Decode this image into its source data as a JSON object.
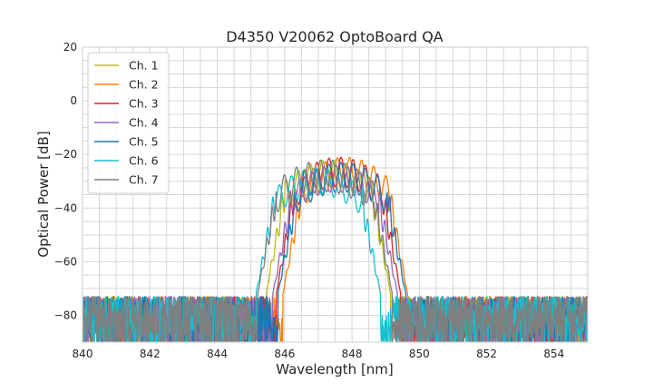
{
  "chart_data": {
    "type": "line",
    "title": "D4350 V20062 OptoBoard QA",
    "xlabel": "Wavelength [nm]",
    "ylabel": "Optical Power [dB]",
    "xlim": [
      840,
      855
    ],
    "ylim": [
      -90,
      20
    ],
    "xticks": [
      840,
      842,
      844,
      846,
      848,
      850,
      852,
      854
    ],
    "yticks": [
      -80,
      -60,
      -40,
      -20,
      0,
      20
    ],
    "grid": true,
    "legend_position": "top-left",
    "noise_floor_db": -80,
    "series": [
      {
        "name": "Ch. 1",
        "color": "#bcbd22",
        "center_nm": 847.3,
        "bandwidth_nm": 2.6,
        "peak_db": -22,
        "ripple_db": 10
      },
      {
        "name": "Ch. 2",
        "color": "#ff7f0e",
        "center_nm": 847.8,
        "bandwidth_nm": 2.6,
        "peak_db": -21,
        "ripple_db": 11
      },
      {
        "name": "Ch. 3",
        "color": "#d62728",
        "center_nm": 847.6,
        "bandwidth_nm": 2.6,
        "peak_db": -21,
        "ripple_db": 11
      },
      {
        "name": "Ch. 4",
        "color": "#9467bd",
        "center_nm": 847.5,
        "bandwidth_nm": 2.6,
        "peak_db": -24,
        "ripple_db": 10
      },
      {
        "name": "Ch. 5",
        "color": "#1f77b4",
        "center_nm": 847.7,
        "bandwidth_nm": 2.7,
        "peak_db": -23,
        "ripple_db": 11
      },
      {
        "name": "Ch. 6",
        "color": "#17becf",
        "center_nm": 847.0,
        "bandwidth_nm": 2.6,
        "peak_db": -25,
        "ripple_db": 10
      },
      {
        "name": "Ch. 7",
        "color": "#7f7f7f",
        "center_nm": 847.2,
        "bandwidth_nm": 2.9,
        "peak_db": -22,
        "ripple_db": 12
      }
    ]
  }
}
